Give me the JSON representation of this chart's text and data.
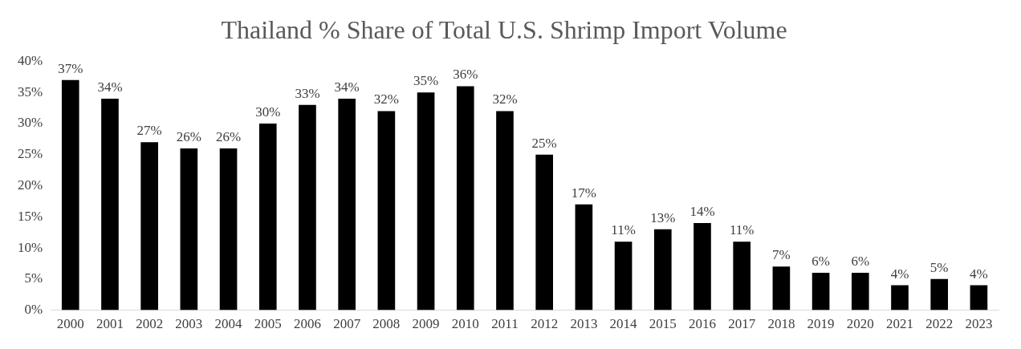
{
  "chart_data": {
    "type": "bar",
    "title": "Thailand % Share of Total U.S. Shrimp Import Volume",
    "categories": [
      "2000",
      "2001",
      "2002",
      "2003",
      "2004",
      "2005",
      "2006",
      "2007",
      "2008",
      "2009",
      "2010",
      "2011",
      "2012",
      "2013",
      "2014",
      "2015",
      "2016",
      "2017",
      "2018",
      "2019",
      "2020",
      "2021",
      "2022",
      "2023"
    ],
    "values": [
      37,
      34,
      27,
      26,
      26,
      30,
      33,
      34,
      32,
      35,
      36,
      32,
      25,
      17,
      11,
      13,
      14,
      11,
      7,
      6,
      6,
      4,
      5,
      4
    ],
    "value_labels": [
      "37%",
      "34%",
      "27%",
      "26%",
      "26%",
      "30%",
      "33%",
      "34%",
      "32%",
      "35%",
      "36%",
      "32%",
      "25%",
      "17%",
      "11%",
      "13%",
      "14%",
      "11%",
      "7%",
      "6%",
      "6%",
      "4%",
      "5%",
      "4%"
    ],
    "color": "#000000",
    "ylim": [
      0,
      40
    ],
    "yticks": [
      {
        "value": 0,
        "label": "0%"
      },
      {
        "value": 5,
        "label": "5%"
      },
      {
        "value": 10,
        "label": "10%"
      },
      {
        "value": 15,
        "label": "15%"
      },
      {
        "value": 20,
        "label": "20%"
      },
      {
        "value": 25,
        "label": "25%"
      },
      {
        "value": 30,
        "label": "30%"
      },
      {
        "value": 35,
        "label": "35%"
      },
      {
        "value": 40,
        "label": "40%"
      }
    ],
    "grid": false,
    "legend": false
  }
}
